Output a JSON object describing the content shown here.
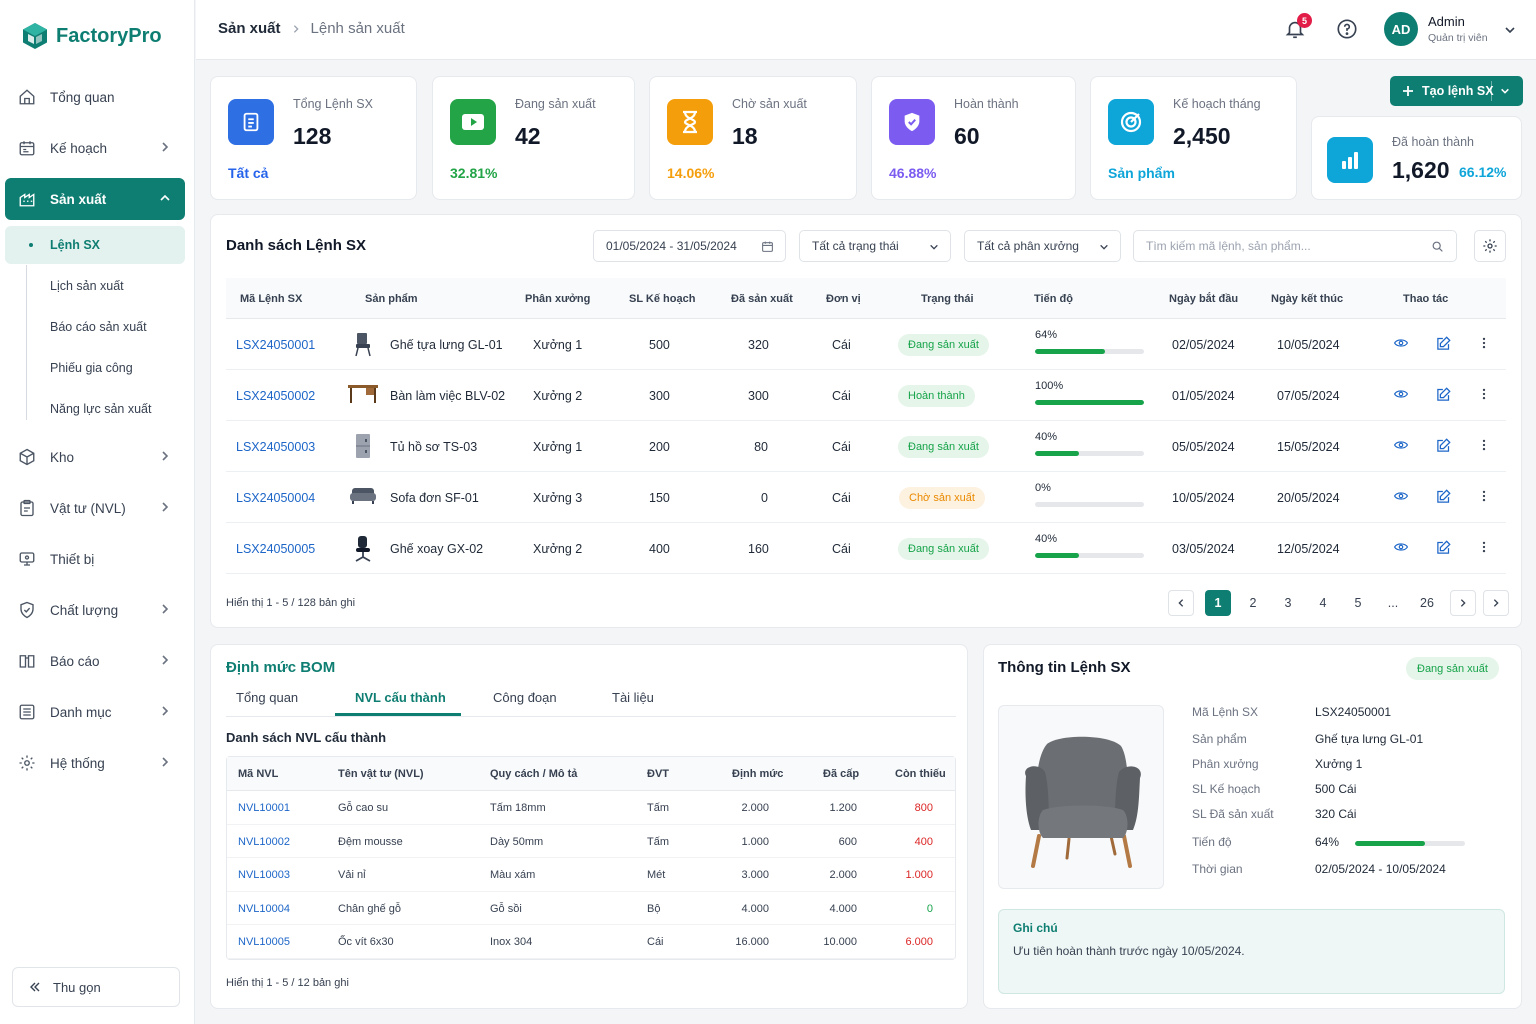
{
  "app": {
    "name": "FactoryPro"
  },
  "sidebar": {
    "items": [
      {
        "label": "Tổng quan"
      },
      {
        "label": "Kế hoạch"
      },
      {
        "label": "Sản xuất"
      },
      {
        "label": "Kho"
      },
      {
        "label": "Vật tư (NVL)"
      },
      {
        "label": "Thiết bị"
      },
      {
        "label": "Chất lượng"
      },
      {
        "label": "Báo cáo"
      },
      {
        "label": "Danh mục"
      },
      {
        "label": "Hệ thống"
      }
    ],
    "sub_items": [
      {
        "label": "Lệnh SX"
      },
      {
        "label": "Lịch sản xuất"
      },
      {
        "label": "Báo cáo sản xuất"
      },
      {
        "label": "Phiếu gia công"
      },
      {
        "label": "Năng lực sản xuất"
      }
    ],
    "collapse_label": "Thu gọn"
  },
  "header": {
    "breadcrumb": [
      "Sản xuất",
      "Lệnh sản xuất"
    ],
    "notif_count": "5",
    "user": {
      "initials": "AD",
      "name": "Admin",
      "role": "Quản trị viên"
    }
  },
  "stats": [
    {
      "label": "Tổng Lệnh SX",
      "value": "128",
      "sub": "Tất cả",
      "color": "#2563eb"
    },
    {
      "label": "Đang sản xuất",
      "value": "42",
      "sub": "32.81%",
      "color": "#22a447"
    },
    {
      "label": "Chờ sản xuất",
      "value": "18",
      "sub": "14.06%",
      "color": "#f59e0b"
    },
    {
      "label": "Hoàn thành",
      "value": "60",
      "sub": "46.88%",
      "color": "#7c5cf0"
    },
    {
      "label": "Kế hoạch tháng",
      "value": "2,450",
      "sub": "Sản phẩm",
      "color": "#0ea5d9"
    },
    {
      "label": "Đã hoàn thành",
      "value": "1,620",
      "sub": "66.12%",
      "color": "#0ea5d9"
    }
  ],
  "create_button": "Tạo lệnh SX",
  "orders": {
    "title": "Danh sách Lệnh SX",
    "date_range": "01/05/2024 - 31/05/2024",
    "status_filter": "Tất cả trạng thái",
    "workshop_filter": "Tất cả phân xưởng",
    "search_placeholder": "Tìm kiếm mã lệnh, sản phẩm...",
    "columns": [
      "Mã Lệnh SX",
      "Sản phẩm",
      "Phân xưởng",
      "SL Kế hoạch",
      "Đã sản xuất",
      "Đơn vị",
      "Trạng thái",
      "Tiến độ",
      "Ngày bắt đầu",
      "Ngày kết thúc",
      "Thao tác"
    ],
    "rows": [
      {
        "code": "LSX24050001",
        "product": "Ghế tựa lưng GL-01",
        "icon": "chair-icon",
        "workshop": "Xưởng 1",
        "plan": "500",
        "done": "320",
        "unit": "Cái",
        "status": "Đang sản xuất",
        "status_type": "green",
        "progress_label": "64%",
        "progress": 64,
        "start": "02/05/2024",
        "end": "10/05/2024"
      },
      {
        "code": "LSX24050002",
        "product": "Bàn làm việc BLV-02",
        "icon": "desk-icon",
        "workshop": "Xưởng 2",
        "plan": "300",
        "done": "300",
        "unit": "Cái",
        "status": "Hoàn thành",
        "status_type": "green",
        "progress_label": "100%",
        "progress": 100,
        "start": "01/05/2024",
        "end": "07/05/2024"
      },
      {
        "code": "LSX24050003",
        "product": "Tủ hồ sơ TS-03",
        "icon": "cabinet-icon",
        "workshop": "Xưởng 1",
        "plan": "200",
        "done": "80",
        "unit": "Cái",
        "status": "Đang sản xuất",
        "status_type": "green",
        "progress_label": "40%",
        "progress": 40,
        "start": "05/05/2024",
        "end": "15/05/2024"
      },
      {
        "code": "LSX24050004",
        "product": "Sofa đơn SF-01",
        "icon": "sofa-icon",
        "workshop": "Xưởng 3",
        "plan": "150",
        "done": "0",
        "unit": "Cái",
        "status": "Chờ sản xuất",
        "status_type": "orange",
        "progress_label": "0%",
        "progress": 0,
        "start": "10/05/2024",
        "end": "20/05/2024"
      },
      {
        "code": "LSX24050005",
        "product": "Ghế xoay GX-02",
        "icon": "office-chair-icon",
        "workshop": "Xưởng 2",
        "plan": "400",
        "done": "160",
        "unit": "Cái",
        "status": "Đang sản xuất",
        "status_type": "green",
        "progress_label": "40%",
        "progress": 40,
        "start": "03/05/2024",
        "end": "12/05/2024"
      }
    ],
    "footer": "Hiển thị 1 - 5 / 128 bản ghi",
    "pages": [
      "1",
      "2",
      "3",
      "4",
      "5",
      "...",
      "26"
    ]
  },
  "bom": {
    "title": "Định mức BOM",
    "tabs": [
      "Tổng quan",
      "NVL cấu thành",
      "Công đoạn",
      "Tài liệu"
    ],
    "subtitle": "Danh sách NVL cấu thành",
    "columns": [
      "Mã NVL",
      "Tên vật tư (NVL)",
      "Quy cách / Mô tả",
      "ĐVT",
      "Định mức",
      "Đã cấp",
      "Còn thiếu"
    ],
    "rows": [
      {
        "code": "NVL10001",
        "name": "Gỗ cao su",
        "spec": "Tấm 18mm",
        "unit": "Tấm",
        "norm": "2.000",
        "issued": "1.200",
        "missing": "800",
        "missing_color": "#dc2626"
      },
      {
        "code": "NVL10002",
        "name": "Đệm mousse",
        "spec": "Dày 50mm",
        "unit": "Tấm",
        "norm": "1.000",
        "issued": "600",
        "missing": "400",
        "missing_color": "#dc2626"
      },
      {
        "code": "NVL10003",
        "name": "Vải nỉ",
        "spec": "Màu xám",
        "unit": "Mét",
        "norm": "3.000",
        "issued": "2.000",
        "missing": "1.000",
        "missing_color": "#dc2626"
      },
      {
        "code": "NVL10004",
        "name": "Chân ghế gỗ",
        "spec": "Gỗ sồi",
        "unit": "Bộ",
        "norm": "4.000",
        "issued": "4.000",
        "missing": "0",
        "missing_color": "#16a34a"
      },
      {
        "code": "NVL10005",
        "name": "Ốc vít 6x30",
        "spec": "Inox 304",
        "unit": "Cái",
        "norm": "16.000",
        "issued": "10.000",
        "missing": "6.000",
        "missing_color": "#dc2626"
      }
    ],
    "footer": "Hiển thị 1 - 5 / 12 bản ghi"
  },
  "info": {
    "title": "Thông tin Lệnh SX",
    "status": "Đang sản xuất",
    "fields": [
      {
        "label": "Mã Lệnh SX",
        "value": "LSX24050001"
      },
      {
        "label": "Sản phẩm",
        "value": "Ghế tựa lưng GL-01"
      },
      {
        "label": "Phân xưởng",
        "value": "Xưởng 1"
      },
      {
        "label": "SL Kế hoạch",
        "value": "500 Cái"
      },
      {
        "label": "SL Đã sản xuất",
        "value": "320 Cái"
      },
      {
        "label": "Tiến độ",
        "value": "64%"
      },
      {
        "label": "Thời gian",
        "value": "02/05/2024 - 10/05/2024"
      }
    ],
    "progress": 64,
    "note_title": "Ghi chú",
    "note_text": "Ưu tiên hoàn thành trước ngày 10/05/2024."
  }
}
